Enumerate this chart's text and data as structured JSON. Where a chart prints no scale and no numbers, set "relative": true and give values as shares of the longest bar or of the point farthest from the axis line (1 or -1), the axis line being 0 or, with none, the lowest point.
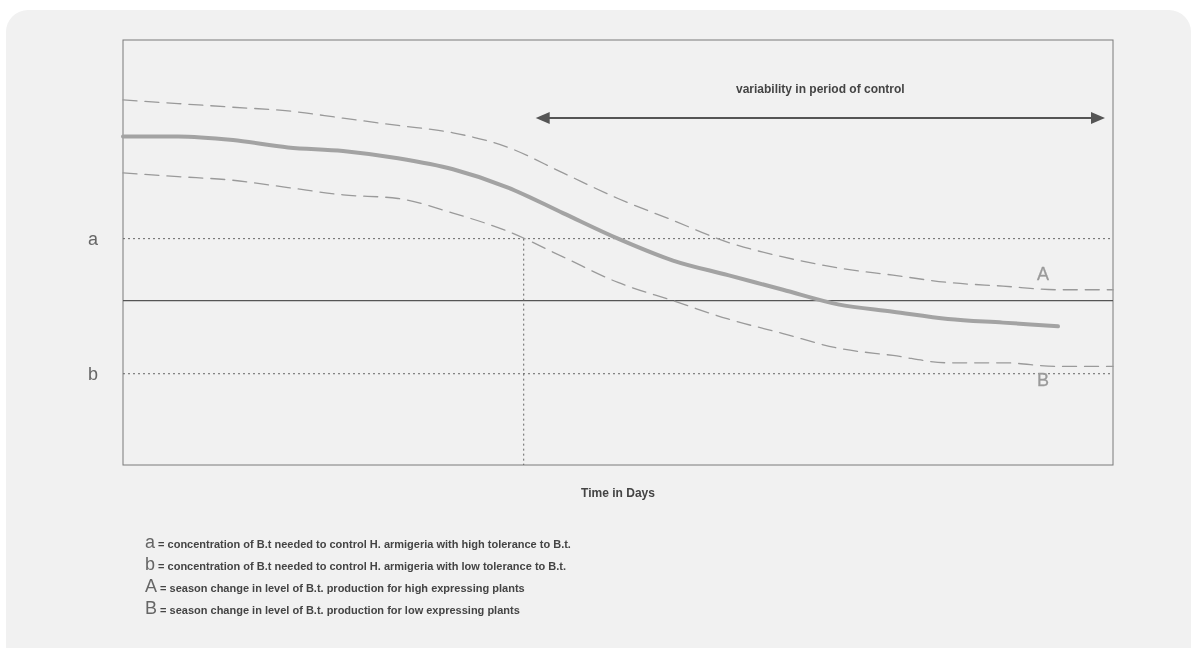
{
  "chart_data": {
    "type": "line",
    "relative": true,
    "xlabel": "Time in Days",
    "categories": [
      null,
      null,
      null,
      null,
      null,
      null,
      null,
      null,
      null,
      null,
      null,
      null,
      null,
      null,
      null,
      null,
      null,
      null,
      null
    ],
    "series": [
      {
        "color": "#a3a3a3",
        "line_style": "solid",
        "values": [
          0.9,
          0.9,
          0.89,
          0.87,
          0.86,
          0.84,
          0.81,
          0.76,
          0.69,
          0.62,
          0.56,
          0.52,
          0.48,
          0.44,
          0.42,
          0.4,
          0.39,
          0.38,
          null
        ]
      },
      {
        "name": "A",
        "color": "#9a9a9a",
        "line_style": "dashed",
        "values": [
          1.0,
          0.99,
          0.98,
          0.97,
          0.95,
          0.93,
          0.91,
          0.87,
          0.8,
          0.73,
          0.67,
          0.61,
          0.57,
          0.54,
          0.52,
          0.5,
          0.49,
          0.48,
          0.48
        ]
      },
      {
        "name": "B",
        "color": "#9a9a9a",
        "line_style": "dashed",
        "values": [
          0.8,
          0.79,
          0.78,
          0.76,
          0.74,
          0.73,
          0.69,
          0.64,
          0.57,
          0.5,
          0.45,
          0.4,
          0.36,
          0.32,
          0.3,
          0.28,
          0.28,
          0.27,
          0.27
        ]
      }
    ],
    "ref_lines": [
      {
        "axis": "y",
        "value": 0.62,
        "label": "a",
        "line_style": "dotted",
        "color": "#666666"
      },
      {
        "axis": "y",
        "value": 0.45,
        "label": null,
        "line_style": "solid",
        "color": "#555555"
      },
      {
        "axis": "y",
        "value": 0.25,
        "label": "b",
        "line_style": "dotted",
        "color": "#666666"
      }
    ],
    "annotations": [
      "variability in period of control",
      "a = concentration of B.t needed to control H. armigeria with high tolerance to B.t.",
      "b = concentration of B.t needed to control H. armigeria with low tolerance to B.t.",
      "A = season change in level of B.t. production for high expressing plants",
      "B = season change in level of B.t. production for low expressing plants"
    ],
    "grid": false,
    "legend": false,
    "marker": "none"
  }
}
